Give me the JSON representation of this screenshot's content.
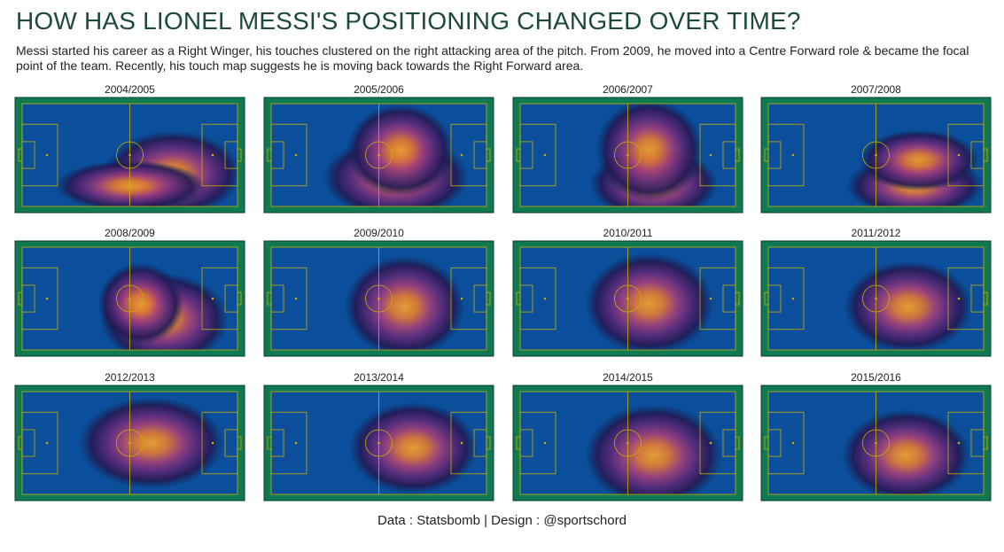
{
  "title": "HOW HAS LIONEL MESSI'S POSITIONING CHANGED OVER TIME?",
  "subtitle": "Messi started his career as a Right Winger, his touches clustered on the right attacking area of the pitch. From 2009, he moved into a Centre Forward role & became the focal point of the team. Recently, his touch map suggests he is moving back towards the Right Forward area.",
  "panels": [
    {
      "label": "2004/2005"
    },
    {
      "label": "2005/2006"
    },
    {
      "label": "2006/2007"
    },
    {
      "label": "2007/2008"
    },
    {
      "label": "2008/2009"
    },
    {
      "label": "2009/2010"
    },
    {
      "label": "2010/2011"
    },
    {
      "label": "2011/2012"
    },
    {
      "label": "2012/2013"
    },
    {
      "label": "2013/2014"
    },
    {
      "label": "2014/2015"
    },
    {
      "label": "2015/2016"
    }
  ],
  "footer": "Data : Statsbomb | Design : @sportschord"
}
